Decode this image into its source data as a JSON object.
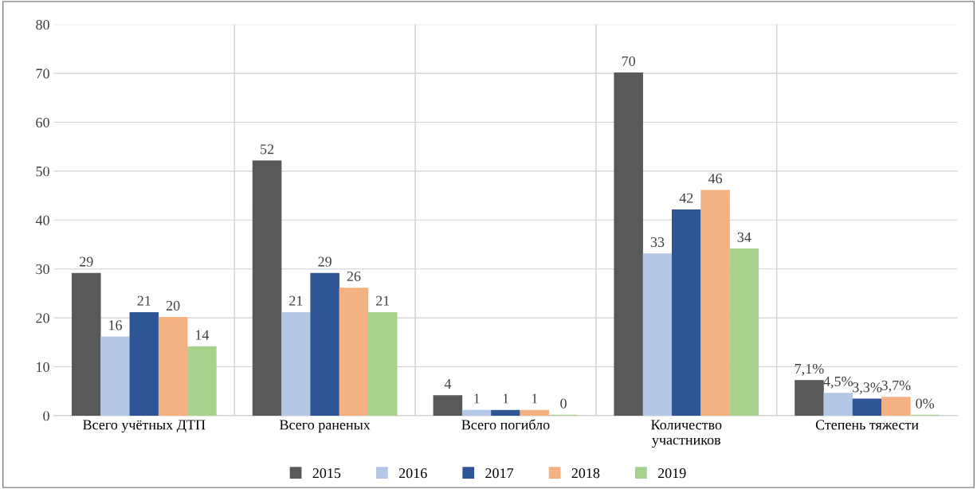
{
  "chart_data": {
    "type": "bar",
    "categories": [
      "Всего учётных ДТП",
      "Всего раненых",
      "Всего погибло",
      "Количество\nучастников",
      "Степень тяжести"
    ],
    "series": [
      {
        "name": "2015",
        "color": "#595959",
        "values": [
          29,
          52,
          4,
          70,
          7.1
        ],
        "value_labels": [
          "29",
          "52",
          "4",
          "70",
          "7,1%"
        ]
      },
      {
        "name": "2016",
        "color": "#b4c7e7",
        "values": [
          16,
          21,
          1,
          33,
          4.5
        ],
        "value_labels": [
          "16",
          "21",
          "1",
          "33",
          "4,5%"
        ]
      },
      {
        "name": "2017",
        "color": "#2f5597",
        "values": [
          21,
          29,
          1,
          42,
          3.3
        ],
        "value_labels": [
          "21",
          "29",
          "1",
          "42",
          "3,3%"
        ]
      },
      {
        "name": "2018",
        "color": "#f4b183",
        "values": [
          20,
          26,
          1,
          46,
          3.7
        ],
        "value_labels": [
          "20",
          "26",
          "1",
          "46",
          "3,7%"
        ]
      },
      {
        "name": "2019",
        "color": "#a9d18e",
        "values": [
          14,
          21,
          0,
          34,
          0
        ],
        "value_labels": [
          "14",
          "21",
          "0",
          "34",
          "0%"
        ]
      }
    ],
    "ylim": [
      0,
      80
    ],
    "yticks": [
      0,
      10,
      20,
      30,
      40,
      50,
      60,
      70,
      80
    ],
    "grid": "y",
    "legend": "bottom"
  }
}
